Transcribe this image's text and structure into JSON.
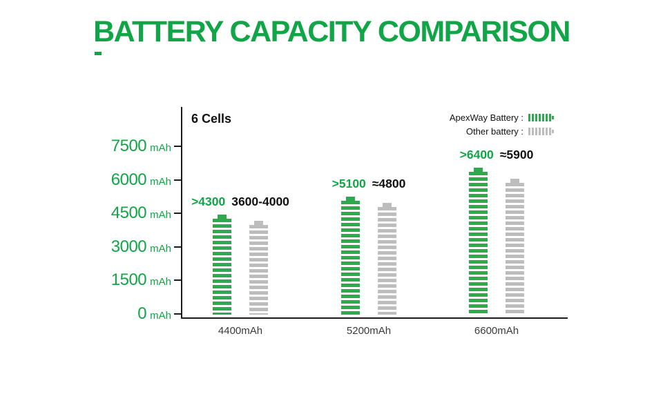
{
  "title": "BATTERY CAPACITY COMPARISON",
  "colors": {
    "accent_green": "#10a546",
    "bar_green": "#2ea94e",
    "bar_gray": "#bdbdbd"
  },
  "chart_data": {
    "type": "bar",
    "title": "BATTERY CAPACITY COMPARISON",
    "subtitle": "6 Cells",
    "ylabel_unit": "mAh",
    "y_ticks": [
      7500,
      6000,
      4500,
      3000,
      1500,
      0
    ],
    "ylim": [
      0,
      7500
    ],
    "grid": false,
    "legend_position": "top-right",
    "legend": [
      {
        "label": "ApexWay Battery :",
        "swatch": "green-striped-battery"
      },
      {
        "label": "Other battery :",
        "swatch": "gray-striped-battery"
      }
    ],
    "categories": [
      "4400mAh",
      "5200mAh",
      "6600mAh"
    ],
    "series": [
      {
        "name": "ApexWay Battery",
        "color": "#2ea94e",
        "values": [
          4300,
          5100,
          6400
        ],
        "data_labels": [
          ">4300",
          ">5100",
          ">6400"
        ]
      },
      {
        "name": "Other battery",
        "color": "#bdbdbd",
        "values": [
          4000,
          4800,
          5900
        ],
        "data_labels": [
          "3600-4000",
          "≈4800",
          "≈5900"
        ]
      }
    ]
  }
}
